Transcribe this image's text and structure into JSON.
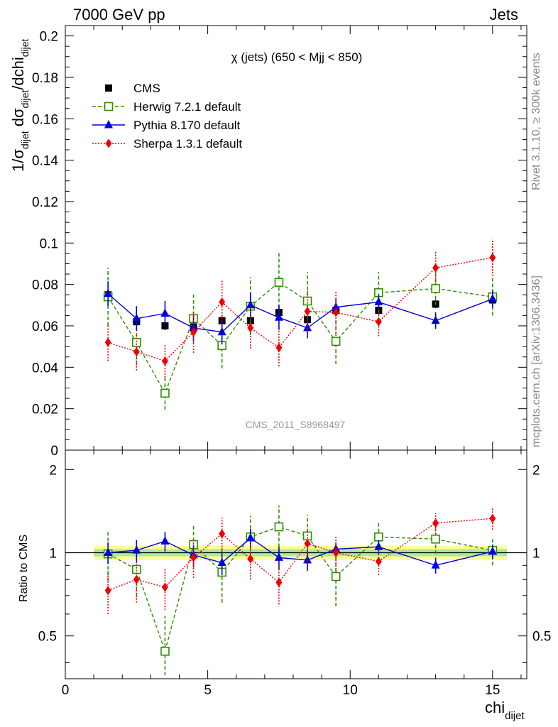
{
  "header": {
    "left": "7000 GeV pp",
    "right": "Jets"
  },
  "side_labels": {
    "rivet": "Rivet 3.1.10, ≥ 300k events",
    "mcplots": "mcplots.cern.ch [arXiv:1306.3436]"
  },
  "chart_data": [
    {
      "type": "scatter",
      "panel": "main",
      "title": "χ (jets) (650 < Mjj <  850)",
      "watermark": "CMS_2011_S8968497",
      "ylabel": "1/σ_dijet dσ_dijet/dchi_dijet",
      "xlabel": "chi_dijet",
      "xlim": [
        0,
        16.2
      ],
      "ylim": [
        0,
        0.205
      ],
      "yticks": [
        "0",
        "0.02",
        "0.04",
        "0.06",
        "0.08",
        "0.1",
        "0.12",
        "0.14",
        "0.16",
        "0.18",
        "0.2"
      ],
      "xticks": [
        "0",
        "5",
        "10",
        "15"
      ],
      "legend_placement": "top-left",
      "x": [
        1.5,
        2.5,
        3.5,
        4.5,
        5.5,
        6.5,
        7.5,
        8.5,
        9.5,
        11,
        13,
        15
      ],
      "series": [
        {
          "name": "CMS",
          "marker": "square-filled",
          "line": "none",
          "color": "#000000",
          "values": [
            0.075,
            0.062,
            0.06,
            0.0595,
            0.0625,
            0.0625,
            0.0665,
            0.063,
            0.0675,
            0.0675,
            0.0705,
            0.0725
          ],
          "errors": [
            0.002,
            0.002,
            0.002,
            0.002,
            0.002,
            0.002,
            0.002,
            0.002,
            0.002,
            0.002,
            0.002,
            0.002
          ]
        },
        {
          "name": "Herwig 7.2.1 default",
          "marker": "square-open",
          "line": "dashed",
          "color": "#2f8f00",
          "values": [
            0.074,
            0.052,
            0.0275,
            0.0635,
            0.0505,
            0.0695,
            0.081,
            0.072,
            0.0525,
            0.076,
            0.078,
            0.074
          ],
          "errors": [
            0.014,
            0.011,
            0.008,
            0.012,
            0.011,
            0.014,
            0.015,
            0.014,
            0.011,
            0.01,
            0.008,
            0.009
          ]
        },
        {
          "name": "Pythia 8.170 default",
          "marker": "triangle-filled",
          "line": "solid",
          "color": "#0000dd",
          "values": [
            0.0755,
            0.0635,
            0.066,
            0.059,
            0.057,
            0.07,
            0.064,
            0.059,
            0.069,
            0.0715,
            0.0625,
            0.073
          ],
          "errors": [
            0.006,
            0.006,
            0.006,
            0.006,
            0.006,
            0.006,
            0.006,
            0.005,
            0.004,
            0.004,
            0.004,
            0.004
          ]
        },
        {
          "name": "Sherpa 1.3.1 default",
          "marker": "diamond-filled",
          "line": "dotted",
          "color": "#ee0000",
          "values": [
            0.052,
            0.0475,
            0.043,
            0.057,
            0.0715,
            0.059,
            0.0495,
            0.067,
            0.0665,
            0.062,
            0.088,
            0.093
          ],
          "errors": [
            0.009,
            0.009,
            0.008,
            0.01,
            0.011,
            0.01,
            0.009,
            0.01,
            0.01,
            0.007,
            0.008,
            0.009
          ]
        }
      ]
    },
    {
      "type": "scatter",
      "panel": "ratio",
      "ylabel": "Ratio to CMS",
      "xlabel": "chi_dijet",
      "xlim": [
        0,
        16.2
      ],
      "ylim": [
        0.35,
        2.35
      ],
      "yscale": "log",
      "yticks": [
        "0.5",
        "1",
        "2"
      ],
      "band": {
        "outer": 0.06,
        "inner": 0.03,
        "outer_color": "#ffff99",
        "inner_color": "#b2e6a0"
      },
      "x": [
        1.5,
        2.5,
        3.5,
        4.5,
        5.5,
        6.5,
        7.5,
        8.5,
        9.5,
        11,
        13,
        15
      ],
      "series": [
        {
          "name": "Herwig 7.2.1 default",
          "marker": "square-open",
          "line": "dashed",
          "color": "#2f8f00",
          "values": [
            0.99,
            0.87,
            0.44,
            1.07,
            0.85,
            1.14,
            1.24,
            1.15,
            0.82,
            1.14,
            1.12,
            1.02
          ],
          "errors": [
            0.2,
            0.18,
            0.15,
            0.2,
            0.19,
            0.22,
            0.24,
            0.22,
            0.18,
            0.16,
            0.13,
            0.12
          ]
        },
        {
          "name": "Pythia 8.170 default",
          "marker": "triangle-filled",
          "line": "solid",
          "color": "#0000dd",
          "values": [
            1.0,
            1.02,
            1.1,
            0.98,
            0.92,
            1.13,
            0.96,
            0.94,
            1.03,
            1.05,
            0.9,
            1.01
          ],
          "errors": [
            0.09,
            0.09,
            0.09,
            0.09,
            0.09,
            0.09,
            0.09,
            0.08,
            0.06,
            0.06,
            0.06,
            0.06
          ]
        },
        {
          "name": "Sherpa 1.3.1 default",
          "marker": "diamond-filled",
          "line": "dotted",
          "color": "#ee0000",
          "values": [
            0.73,
            0.8,
            0.75,
            0.96,
            1.17,
            0.95,
            0.78,
            1.08,
            1.0,
            0.93,
            1.28,
            1.33
          ],
          "errors": [
            0.13,
            0.14,
            0.13,
            0.15,
            0.17,
            0.15,
            0.13,
            0.15,
            0.15,
            0.1,
            0.11,
            0.12
          ]
        }
      ]
    }
  ]
}
